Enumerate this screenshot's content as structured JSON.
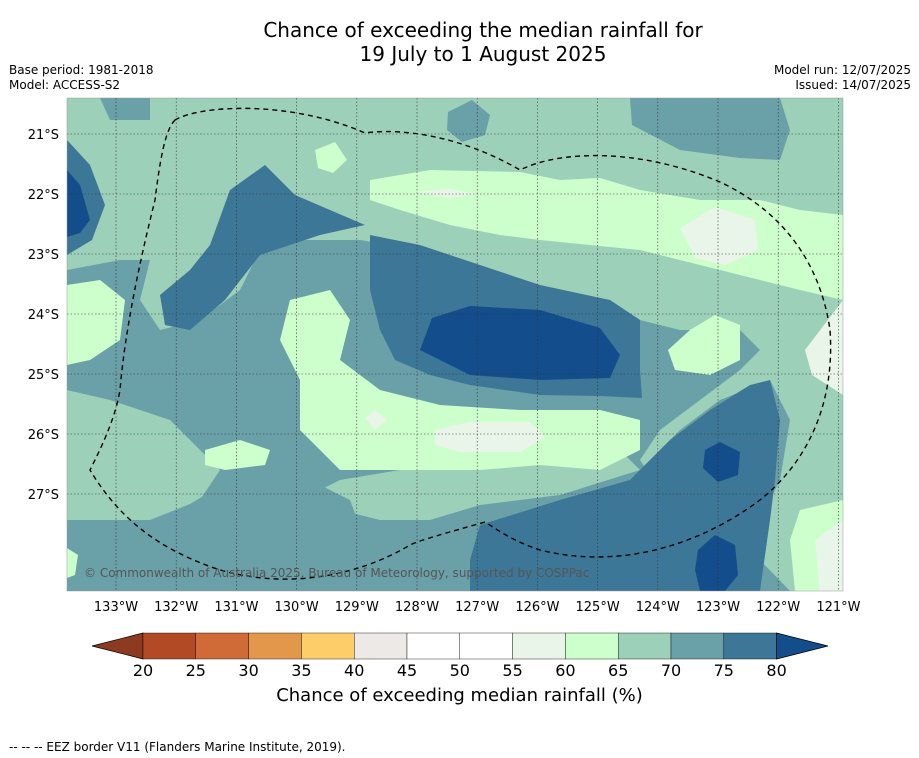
{
  "title": {
    "line1": "Chance of exceeding the median rainfall for",
    "line2": "19 July to 1 August 2025"
  },
  "meta_left": {
    "base_period": "Base period: 1981-2018",
    "model": "Model: ACCESS-S2"
  },
  "meta_right": {
    "model_run": "Model run: 12/07/2025",
    "issued": "Issued: 14/07/2025"
  },
  "map": {
    "lat_labels": [
      "21°S",
      "22°S",
      "23°S",
      "24°S",
      "25°S",
      "26°S",
      "27°S"
    ],
    "lon_labels": [
      "133°W",
      "132°W",
      "131°W",
      "130°W",
      "129°W",
      "128°W",
      "127°W",
      "126°W",
      "125°W",
      "124°W",
      "123°W",
      "122°W",
      "121°W"
    ],
    "copyright": "© Commonwealth of Australia 2025, Bureau of Meteorology, supported by COSPPac",
    "eez_style": "dashed"
  },
  "colorbar": {
    "ticks": [
      "20",
      "25",
      "30",
      "35",
      "40",
      "45",
      "50",
      "55",
      "60",
      "65",
      "70",
      "75",
      "80"
    ],
    "colors": [
      "#b24a26",
      "#d06a36",
      "#e3974a",
      "#fdcd6a",
      "#ece9e6",
      "#ffffff",
      "#ffffff",
      "#e9f5e9",
      "#ccffcc",
      "#9dd0b8",
      "#6aa0a8",
      "#3d7797"
    ],
    "under_color": "#8c3a20",
    "over_color": "#134d8b",
    "label": "Chance of exceeding median rainfall (%)"
  },
  "footer": "--  --  -- EEZ border V11 (Flanders Marine Institute, 2019)."
}
